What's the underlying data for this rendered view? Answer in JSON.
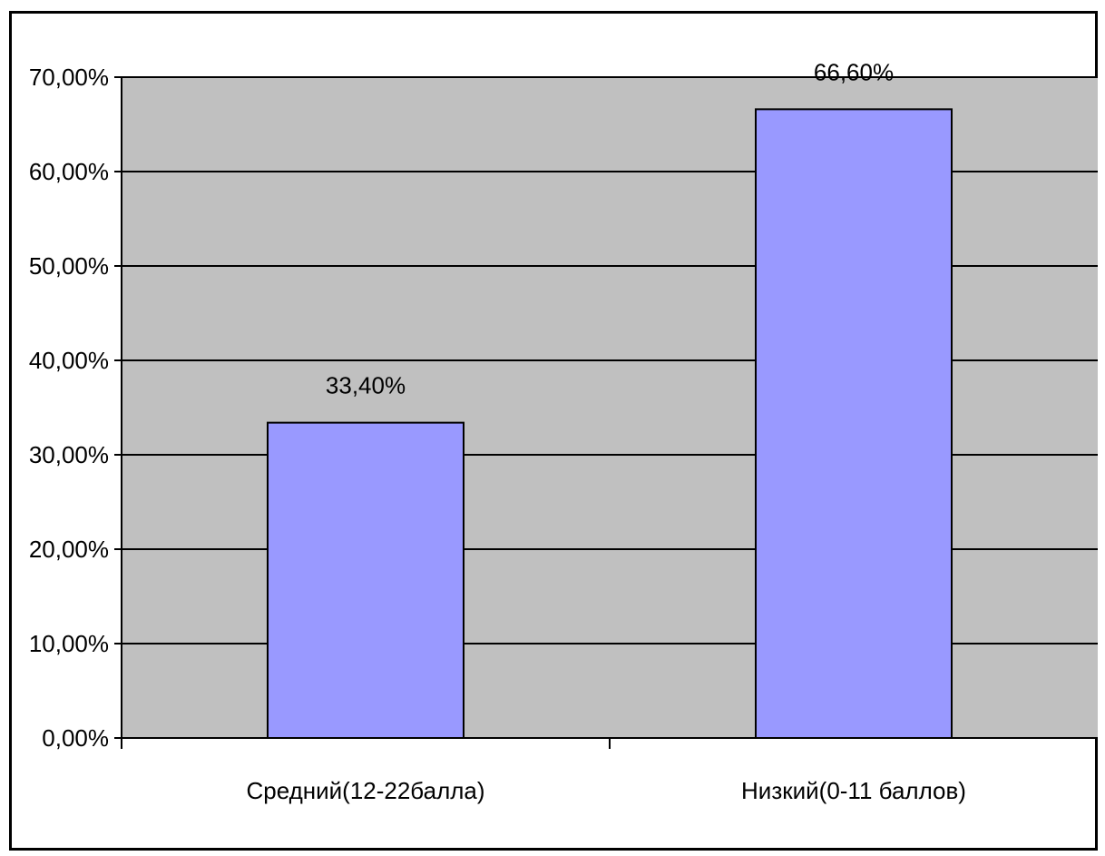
{
  "chart_data": {
    "type": "bar",
    "categories": [
      "Средний(12-22балла)",
      "Низкий(0-11 баллов)"
    ],
    "values": [
      33.4,
      66.6
    ],
    "data_labels": [
      "33,40%",
      "66,60%"
    ],
    "ylim": [
      0,
      70
    ],
    "y_ticks": [
      0,
      10,
      20,
      30,
      40,
      50,
      60,
      70
    ],
    "y_tick_labels": [
      "0,00%",
      "10,00%",
      "20,00%",
      "30,00%",
      "40,00%",
      "50,00%",
      "60,00%",
      "70,00%"
    ],
    "grid": true,
    "legend": "none",
    "colors": {
      "plot_background": "#c0c0c0",
      "bar_fill": "#9999ff",
      "bar_stroke": "#000000",
      "gridline": "#000000"
    }
  }
}
